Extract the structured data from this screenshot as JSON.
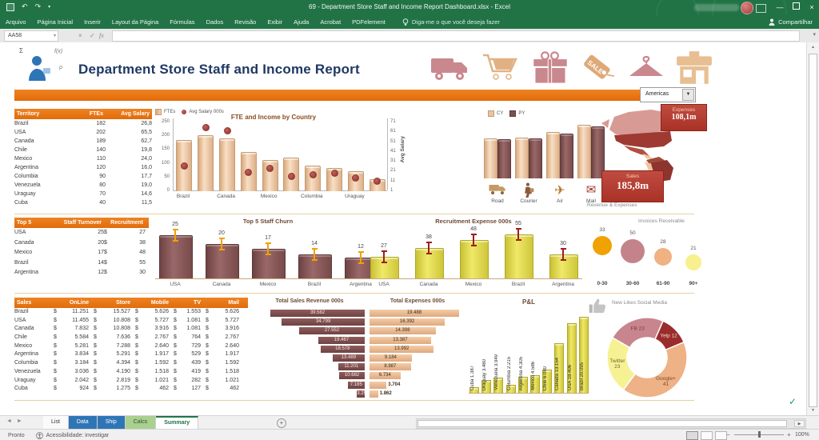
{
  "titlebar": {
    "title": "69 - Department Store Staff and Income Report Dashboard.xlsx - Excel"
  },
  "ribbon": {
    "tabs": [
      "Arquivo",
      "Página Inicial",
      "Inserir",
      "Layout da Página",
      "Fórmulas",
      "Dados",
      "Revisão",
      "Exibir",
      "Ajuda",
      "Acrobat",
      "PDFelement"
    ],
    "search_label": "Diga-me o que você deseja fazer",
    "share_label": "Compartilhar"
  },
  "formula_bar": {
    "name_box": "AA58"
  },
  "dashboard": {
    "title": "Department Store Staff and Income Report",
    "region_selector": {
      "value": "Americas"
    },
    "header_icons": [
      "truck-icon",
      "shopping-cart-icon",
      "gift-icon",
      "sale-tag-icon",
      "hanger-icon",
      "store-icon"
    ],
    "territory_table": {
      "headers": [
        "Territory",
        "FTEs",
        "Avg Salary 000s"
      ],
      "rows": [
        [
          "Brazil",
          "182",
          "26,8"
        ],
        [
          "USA",
          "202",
          "65,5"
        ],
        [
          "Canada",
          "189",
          "62,7"
        ],
        [
          "Chile",
          "140",
          "19,8"
        ],
        [
          "Mexico",
          "110",
          "24,0"
        ],
        [
          "Argentina",
          "120",
          "16,0"
        ],
        [
          "Columbia",
          "90",
          "17,7"
        ],
        [
          "Venezuela",
          "80",
          "19,0"
        ],
        [
          "Uraguay",
          "70",
          "14,6"
        ],
        [
          "Cuba",
          "40",
          "11,5"
        ]
      ]
    },
    "expenses_badge": {
      "label": "Expenses",
      "value": "108,1m"
    },
    "sales_badge": {
      "label": "Sales",
      "value": "185,8m"
    },
    "map_caption": "Revenue & Expenses",
    "top5_table": {
      "headers": [
        "Top 5",
        "Staff Turnover",
        "Recruitment Exp"
      ],
      "currency": "$",
      "rows": [
        [
          "USA",
          "25",
          "27"
        ],
        [
          "Canada",
          "20",
          "38"
        ],
        [
          "Mexico",
          "17",
          "48"
        ],
        [
          "Brazil",
          "14",
          "55"
        ],
        [
          "Argentina",
          "12",
          "30"
        ]
      ]
    },
    "sales_table": {
      "headers": [
        "Sales",
        "OnLine",
        "Store",
        "Mobile",
        "TV",
        "Mail"
      ],
      "currency": "$",
      "rows": [
        [
          "Brazil",
          "11.251",
          "15.527",
          "5.626",
          "1.553",
          "5.626"
        ],
        [
          "USA",
          "11.455",
          "10.808",
          "5.727",
          "1.081",
          "5.727"
        ],
        [
          "Canada",
          "7.832",
          "10.808",
          "3.916",
          "1.081",
          "3.916"
        ],
        [
          "Chile",
          "5.584",
          "7.636",
          "2.767",
          "764",
          "2.767"
        ],
        [
          "Mexico",
          "5.281",
          "7.288",
          "2.640",
          "729",
          "2.640"
        ],
        [
          "Argentina",
          "3.834",
          "5.291",
          "1.917",
          "529",
          "1.917"
        ],
        [
          "Columbia",
          "3.184",
          "4.394",
          "1.592",
          "439",
          "1.592"
        ],
        [
          "Venezuela",
          "3.036",
          "4.190",
          "1.518",
          "419",
          "1.518"
        ],
        [
          "Uraguay",
          "2.042",
          "2.819",
          "1.021",
          "282",
          "1.021"
        ],
        [
          "Cuba",
          "924",
          "1.275",
          "462",
          "127",
          "462"
        ]
      ]
    }
  },
  "chart_data": [
    {
      "id": "fte_income",
      "type": "bar",
      "title": "FTE and Income by Country",
      "legend": [
        "FTEs",
        "Avg Salary 000s"
      ],
      "categories": [
        "Brazil",
        "USA",
        "Canada",
        "Chile",
        "Mexico",
        "Argentina",
        "Columbia",
        "Venezuela",
        "Uraguay",
        "Cuba"
      ],
      "series": [
        {
          "name": "FTEs",
          "type": "bar",
          "values": [
            182,
            202,
            189,
            140,
            110,
            120,
            90,
            80,
            70,
            40
          ]
        },
        {
          "name": "Avg Salary 000s",
          "type": "scatter",
          "values": [
            26.8,
            65.5,
            62.7,
            19.8,
            24.0,
            16.0,
            17.7,
            19.0,
            14.6,
            11.5
          ]
        }
      ],
      "left_axis": {
        "ticks": [
          0,
          50,
          100,
          150,
          200,
          250
        ],
        "max": 250
      },
      "right_axis": {
        "label": "Avg Salary",
        "ticks": [
          1,
          11,
          21,
          31,
          41,
          51,
          61,
          71
        ],
        "min": 1,
        "max": 71
      },
      "x_labels_shown": [
        "Brazil",
        "Canada",
        "Mexico",
        "Columbia",
        "Uraguay"
      ]
    },
    {
      "id": "revenue_expenses",
      "type": "bar",
      "legend": [
        "CY",
        "PY"
      ],
      "categories": [
        "Road",
        "Courier",
        "Air",
        "Mail"
      ],
      "series": [
        {
          "name": "CY",
          "values": [
            54,
            56,
            63,
            73
          ]
        },
        {
          "name": "PY",
          "values": [
            53,
            55,
            61,
            71
          ]
        }
      ],
      "caption": "Revenue & Expenses",
      "ymax": 80
    },
    {
      "id": "staff_churn",
      "type": "bar",
      "title": "Top 5 Staff Churn",
      "categories": [
        "USA",
        "Canada",
        "Mexico",
        "Brazil",
        "Argentina"
      ],
      "values": [
        25,
        20,
        17,
        14,
        12
      ],
      "ymax": 27
    },
    {
      "id": "recruitment_expense",
      "type": "bar",
      "title": "Recruitment Expense 000s",
      "categories": [
        "USA",
        "Canada",
        "Mexico",
        "Brazil",
        "Argentina"
      ],
      "values": [
        27,
        38,
        48,
        55,
        30
      ],
      "ymax": 58
    },
    {
      "id": "invoices_receivable",
      "type": "scatter",
      "title": "Invoices Receivable",
      "categories": [
        "0-30",
        "30-60",
        "61-90",
        "90+"
      ],
      "values": [
        33,
        50,
        28,
        21
      ],
      "colors": [
        "#f0a202",
        "#c4838b",
        "#f0b183",
        "#f8ef8e"
      ]
    },
    {
      "id": "total_sales_revenue",
      "type": "bar",
      "title": "Total Sales Revenue 000s",
      "labels": [
        "39.582",
        "34.799",
        "27.552",
        "19.467",
        "18.578",
        "13.489",
        "11.201",
        "10.682",
        "7.185",
        "3.250"
      ],
      "values": [
        39582,
        34799,
        27552,
        19467,
        18578,
        13489,
        11201,
        10682,
        7185,
        3250
      ]
    },
    {
      "id": "total_expenses",
      "type": "bar",
      "title": "Total Expenses 000s",
      "labels": [
        "19.488",
        "16.392",
        "14.398",
        "13.387",
        "13.992",
        "9.184",
        "8.987",
        "6.734",
        "3.704",
        "1.862"
      ],
      "values": [
        19488,
        16392,
        14398,
        13387,
        13992,
        9184,
        8987,
        6734,
        3704,
        1862
      ]
    },
    {
      "id": "pnl",
      "type": "bar",
      "title": "P&L",
      "categories": [
        "Cuba",
        "Uraguay",
        "Venezuela",
        "Columbia",
        "Argentina",
        "Mexico",
        "Chile",
        "Canada",
        "USA",
        "Brazil"
      ],
      "labels": [
        "Cuba 1.387",
        "Uraguay 3.480",
        "Venezuela 3.949",
        "Columbia 2.215",
        "Argentina 4.305",
        "Mexico 4.586",
        "Chile 6.080",
        "Canada 13.154",
        "USA 18.406",
        "Brazil 20.095"
      ],
      "values": [
        1387,
        3480,
        3949,
        2215,
        4305,
        4586,
        6080,
        13154,
        18406,
        20095
      ]
    },
    {
      "id": "social_likes",
      "type": "pie",
      "title": "New Likes Social Media",
      "segments": [
        {
          "label": "FB",
          "value": 23,
          "color": "#c8858e",
          "text_color": "#7c3d46"
        },
        {
          "label": "Yelp",
          "value": 12,
          "color": "#9b2c2c",
          "text_color": "#f3d9d2"
        },
        {
          "label": "Google+",
          "value": 41,
          "color": "#eeb286",
          "text_color": "#7a4a28"
        },
        {
          "label": "Twitter",
          "value": 23,
          "color": "#f6f193",
          "text_color": "#6e6a2a"
        }
      ],
      "start_angle": -60,
      "donut": true
    }
  ],
  "sheet_tabs": {
    "tabs": [
      {
        "label": "List",
        "style": "plain"
      },
      {
        "label": "Data",
        "style": "blue"
      },
      {
        "label": "Ship",
        "style": "blue"
      },
      {
        "label": "Calcs",
        "style": "green"
      },
      {
        "label": "Summary",
        "style": "active"
      }
    ]
  },
  "status_bar": {
    "ready": "Pronto",
    "accessibility": "Acessibilidade: investigar",
    "zoom": "100%"
  },
  "colors": {
    "excel_green": "#217346",
    "accent_orange": "#e26b0a",
    "badge_red": "#b13a30",
    "tab_blue": "#2e75b6",
    "tab_green": "#a9d08e"
  }
}
